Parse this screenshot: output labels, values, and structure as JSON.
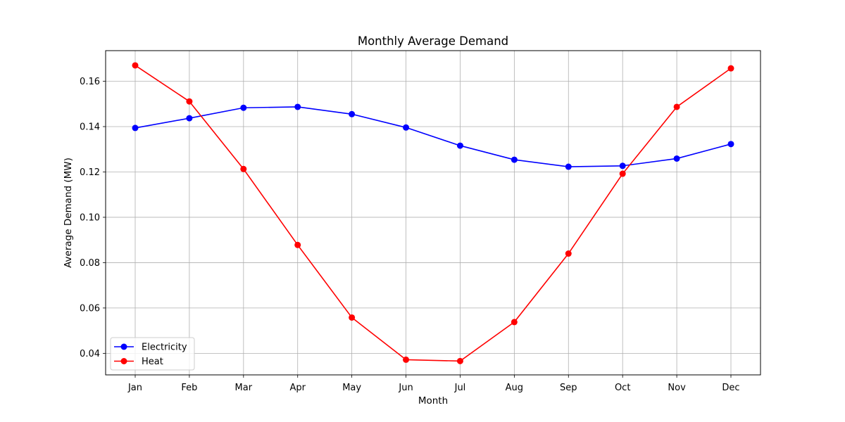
{
  "chart_data": {
    "type": "line",
    "title": "Monthly Average Demand",
    "xlabel": "Month",
    "ylabel": "Average Demand (MW)",
    "categories": [
      "Jan",
      "Feb",
      "Mar",
      "Apr",
      "May",
      "Jun",
      "Jul",
      "Aug",
      "Sep",
      "Oct",
      "Nov",
      "Dec"
    ],
    "yticks": [
      "0.04",
      "0.06",
      "0.08",
      "0.10",
      "0.12",
      "0.14",
      "0.16"
    ],
    "ylim": [
      0.0305,
      0.1735
    ],
    "grid": true,
    "legend_position": "lower-left",
    "series": [
      {
        "name": "Electricity",
        "color": "#0000ff",
        "values": [
          0.1394,
          0.1437,
          0.1483,
          0.1487,
          0.1455,
          0.1396,
          0.1316,
          0.1254,
          0.1223,
          0.1227,
          0.1259,
          0.1323
        ]
      },
      {
        "name": "Heat",
        "color": "#ff0000",
        "values": [
          0.167,
          0.1511,
          0.1213,
          0.0878,
          0.0558,
          0.0372,
          0.0366,
          0.0538,
          0.084,
          0.1192,
          0.1487,
          0.1657
        ]
      }
    ]
  }
}
